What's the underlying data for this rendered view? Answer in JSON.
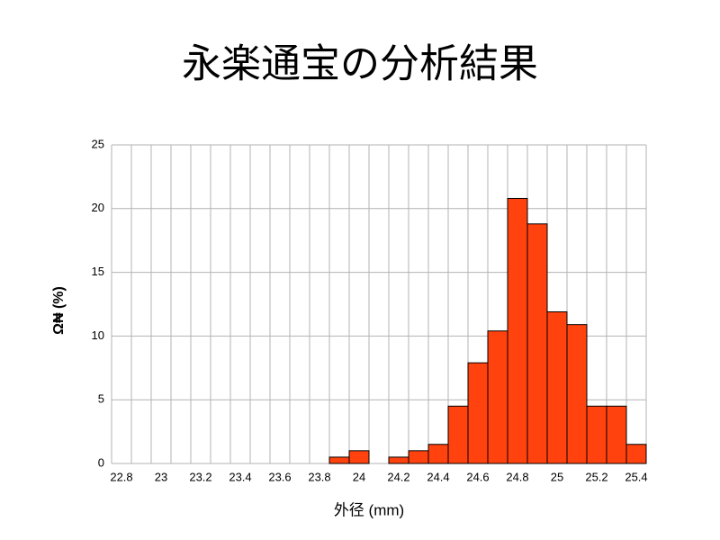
{
  "chart_data": {
    "type": "bar",
    "title": "永楽通宝の分析結果",
    "x_label": "外径 (mm)",
    "y_label": "Ω₦ (%)",
    "categories": [
      "22.8",
      null,
      "23",
      null,
      "23.2",
      null,
      "23.4",
      null,
      "23.6",
      null,
      "23.8",
      null,
      "24",
      null,
      "24.2",
      null,
      "24.4",
      null,
      "24.6",
      null,
      "24.8",
      null,
      "25",
      null,
      "25.2",
      null,
      "25.4"
    ],
    "values": [
      0,
      0,
      0,
      0,
      0,
      0,
      0,
      0,
      0,
      0,
      0,
      0.5,
      1,
      0,
      0.5,
      1,
      1.5,
      4.5,
      7.9,
      10.4,
      20.8,
      18.8,
      11.9,
      10.9,
      4.5,
      4.5,
      1.5
    ],
    "color": "#ff420e",
    "ylim": [
      0,
      25
    ],
    "yticks": [
      0,
      5,
      10,
      15,
      20,
      25
    ],
    "grid": true
  }
}
